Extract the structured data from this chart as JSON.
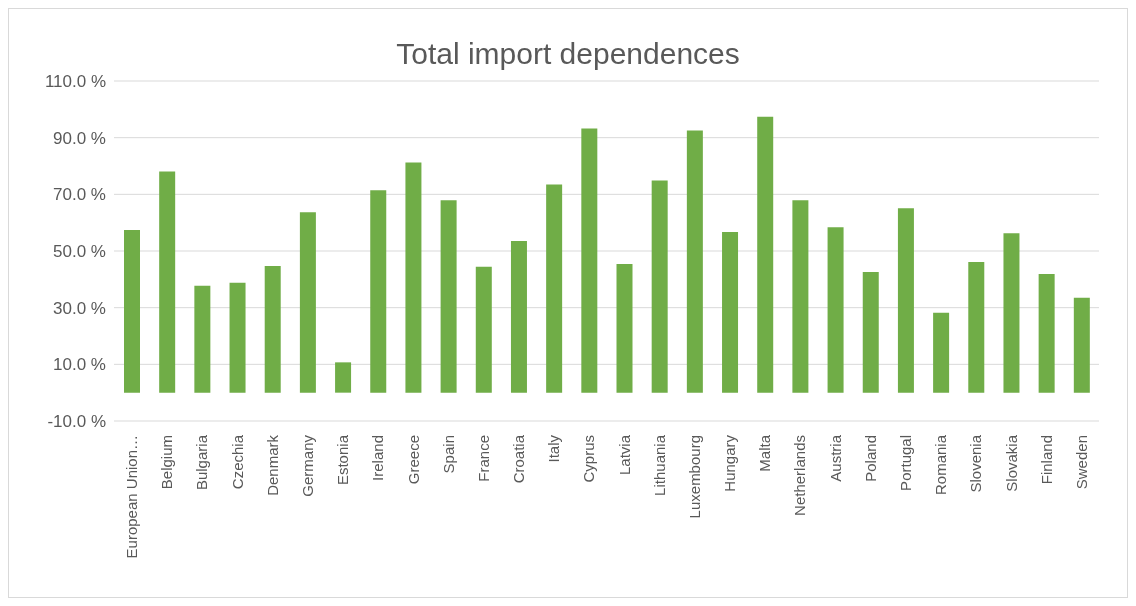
{
  "chart_data": {
    "type": "bar",
    "title": "Total import dependences",
    "categories": [
      "European Union…",
      "Belgium",
      "Bulgaria",
      "Czechia",
      "Denmark",
      "Germany",
      "Estonia",
      "Ireland",
      "Greece",
      "Spain",
      "France",
      "Croatia",
      "Italy",
      "Cyprus",
      "Latvia",
      "Lithuania",
      "Luxembourg",
      "Hungary",
      "Malta",
      "Netherlands",
      "Austria",
      "Poland",
      "Portugal",
      "Romania",
      "Slovenia",
      "Slovakia",
      "Finland",
      "Sweden"
    ],
    "values": [
      57.4,
      78.1,
      37.7,
      38.8,
      44.7,
      63.7,
      10.7,
      71.4,
      81.2,
      67.9,
      44.4,
      53.5,
      73.5,
      93.2,
      45.4,
      74.9,
      92.5,
      56.7,
      97.4,
      67.9,
      58.4,
      42.6,
      65.1,
      28.2,
      46.1,
      56.3,
      41.9,
      33.5
    ],
    "color": "#70ad47",
    "ylim": [
      -10,
      110
    ],
    "yticks": [
      {
        "value": -10,
        "label": "-10.0 %"
      },
      {
        "value": 10,
        "label": "10.0 %"
      },
      {
        "value": 30,
        "label": "30.0 %"
      },
      {
        "value": 50,
        "label": "50.0 %"
      },
      {
        "value": 70,
        "label": "70.0 %"
      },
      {
        "value": 90,
        "label": "90.0 %"
      },
      {
        "value": 110,
        "label": "110.0 %"
      }
    ],
    "grid": "y",
    "legend": false
  }
}
